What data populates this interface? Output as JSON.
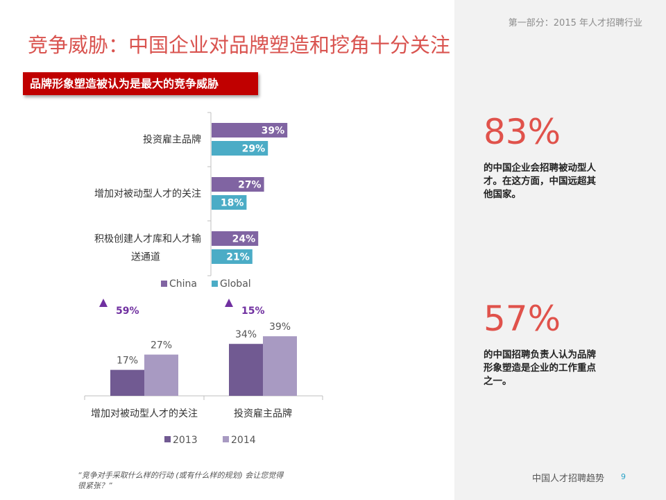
{
  "header": {
    "section_label": "第一部分：2015 年人才招聘行业",
    "title": "竞争威胁：中国企业对品牌塑造和挖角十分关注",
    "subtitle": "品牌形象塑造被认为是最大的竞争威胁"
  },
  "chart_data": [
    {
      "type": "bar",
      "orientation": "horizontal",
      "categories": [
        [
          "投资雇主品牌"
        ],
        [
          "增加对被动型人才的关注"
        ],
        [
          "积极创建人才库和人才输",
          "送通道"
        ]
      ],
      "series": [
        {
          "name": "China",
          "values": [
            39,
            27,
            24
          ],
          "labels": [
            "39%",
            "27%",
            "24%"
          ],
          "color": "#8064a2"
        },
        {
          "name": "Global",
          "values": [
            29,
            18,
            21
          ],
          "labels": [
            "29%",
            "18%",
            "21%"
          ],
          "color": "#4bacc6"
        }
      ],
      "xlim": [
        0,
        100
      ],
      "grid": false,
      "legend": "bottom"
    },
    {
      "type": "bar",
      "orientation": "vertical",
      "categories": [
        "增加对被动型人才的关注",
        "投资雇主品牌"
      ],
      "series": [
        {
          "name": "2013",
          "values": [
            17,
            34
          ],
          "labels": [
            "17%",
            "34%"
          ],
          "color": "#715a92"
        },
        {
          "name": "2014",
          "values": [
            27,
            39
          ],
          "labels": [
            "27%",
            "39%"
          ],
          "color": "#a89ac2"
        }
      ],
      "growth": [
        "59%",
        "15%"
      ],
      "growth_color": "#7030a0",
      "ylim": [
        0,
        40
      ],
      "grid": false,
      "legend": "bottom"
    }
  ],
  "stats": [
    {
      "value": "83%",
      "description": "的中国企业会招聘被动型人才。在这方面，中国远超其他国家。"
    },
    {
      "value": "57%",
      "description": "的中国招聘负责人认为品牌形象塑造是企业的工作重点之一。"
    }
  ],
  "quote": "“竞争对手采取什么样的行动 (或有什么样的规划) 会让您觉得很紧张？”",
  "footer": {
    "title": "中国人才招聘趋势",
    "page_number": "9"
  }
}
